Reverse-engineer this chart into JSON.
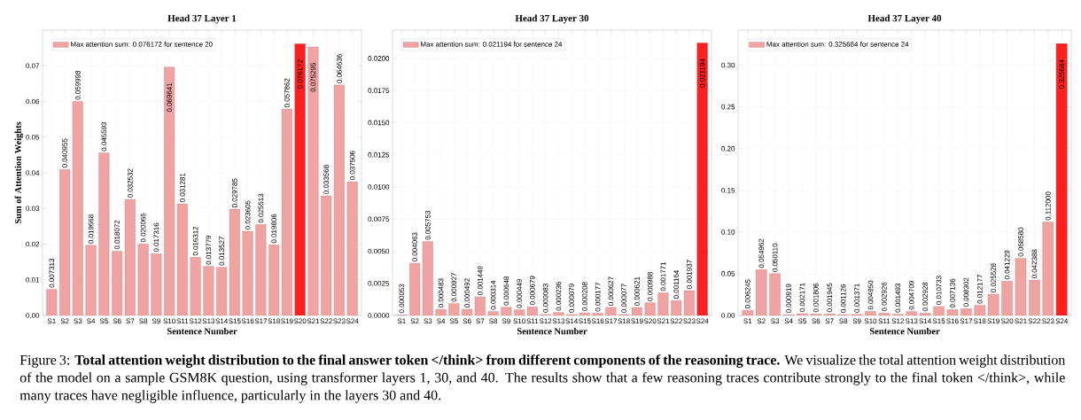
{
  "chart_data": [
    {
      "type": "bar",
      "title": "Head 37 Layer 1",
      "xlabel": "Sentence Number",
      "ylabel": "Sum of Attention Weights",
      "categories": [
        "S1",
        "S2",
        "S3",
        "S4",
        "S5",
        "S6",
        "S7",
        "S8",
        "S9",
        "S10",
        "S11",
        "S12",
        "S13",
        "S14",
        "S15",
        "S16",
        "S17",
        "S18",
        "S19",
        "S20",
        "S21",
        "S22",
        "S23",
        "S24"
      ],
      "series": [
        {
          "name": "Max attention sum: 0.076172 for sentence 20",
          "color": "#f0a3a3",
          "colors": [
            "#f0a3a3",
            "#f0a3a3",
            "#f0a3a3",
            "#f0a3a3",
            "#f0a3a3",
            "#f0a3a3",
            "#f0a3a3",
            "#f0a3a3",
            "#f0a3a3",
            "#f0a3a3",
            "#f0a3a3",
            "#f0a3a3",
            "#f0a3a3",
            "#f0a3a3",
            "#f0a3a3",
            "#f0a3a3",
            "#f0a3a3",
            "#f0a3a3",
            "#f0a3a3",
            "#ff2020",
            "#f0a3a3",
            "#f0a3a3",
            "#f0a3a3",
            "#f0a3a3"
          ],
          "values": [
            0.007313,
            0.040955,
            0.059998,
            0.019668,
            0.045593,
            0.018072,
            0.032532,
            0.020065,
            0.017316,
            0.069641,
            0.031281,
            0.016312,
            0.013779,
            0.013527,
            0.029785,
            0.023605,
            0.025513,
            0.019806,
            0.057862,
            0.076172,
            0.075295,
            0.033568,
            0.064636,
            0.037506
          ],
          "value_labels": [
            "0.007313",
            "0.040955",
            "0.059998",
            "0.019668",
            "0.045593",
            "0.018072",
            "0.032532",
            "0.020065",
            "0.017316",
            "0.069641",
            "0.031281",
            "0.016312",
            "0.013779",
            "0.013527",
            "0.029785",
            "0.023605",
            "0.025513",
            "0.019806",
            "0.057862",
            "0.076172",
            "0.075295",
            "0.033568",
            "0.064636",
            "0.037506"
          ]
        }
      ],
      "ylim": [
        0,
        0.08
      ],
      "yticks": [
        {
          "value": 0,
          "label": "0.00"
        },
        {
          "value": 0.01,
          "label": "0.01"
        },
        {
          "value": 0.02,
          "label": "0.02"
        },
        {
          "value": 0.03,
          "label": "0.03"
        },
        {
          "value": 0.04,
          "label": "0.04"
        },
        {
          "value": 0.05,
          "label": "0.05"
        },
        {
          "value": 0.06,
          "label": "0.06"
        },
        {
          "value": 0.07,
          "label": "0.07"
        }
      ],
      "grid": true,
      "legend": "top left",
      "annotations": [
        "Figure 3: **Total attention weight distribution to the final answer token </think> from different components of the reasoning trace.** We visualize the total attention weight distribution of the model on a sample GSM8K question, using transformer layers 1, 30, and 40. The results show that a few reasoning traces contribute strongly to the final token </think>, while many traces have negligible influence, particularly in the layers 30 and 40."
      ]
    },
    {
      "type": "bar",
      "title": "Head 37 Layer 30",
      "xlabel": "Sentence Number",
      "categories": [
        "S1",
        "S2",
        "S3",
        "S4",
        "S5",
        "S6",
        "S7",
        "S8",
        "S9",
        "S10",
        "S11",
        "S12",
        "S13",
        "S14",
        "S15",
        "S16",
        "S17",
        "S18",
        "S19",
        "S20",
        "S21",
        "S22",
        "S23",
        "S24"
      ],
      "series": [
        {
          "name": "Max attention sum: 0.021194 for sentence 24",
          "color": "#f0a3a3",
          "colors": [
            "#f0a3a3",
            "#f0a3a3",
            "#f0a3a3",
            "#f0a3a3",
            "#f0a3a3",
            "#f0a3a3",
            "#f0a3a3",
            "#f0a3a3",
            "#f0a3a3",
            "#f0a3a3",
            "#f0a3a3",
            "#f0a3a3",
            "#f0a3a3",
            "#f0a3a3",
            "#f0a3a3",
            "#f0a3a3",
            "#f0a3a3",
            "#f0a3a3",
            "#f0a3a3",
            "#f0a3a3",
            "#f0a3a3",
            "#f0a3a3",
            "#f0a3a3",
            "#ff2020"
          ],
          "values": [
            5.3e-05,
            0.004063,
            0.005753,
            0.000483,
            0.000927,
            0.000492,
            0.001449,
            0.000314,
            0.000648,
            0.000449,
            0.000679,
            8.3e-05,
            0.000236,
            7.9e-05,
            0.000208,
            0.000177,
            0.000627,
            7.7e-05,
            0.000621,
            0.000988,
            0.001771,
            0.001164,
            0.001937,
            0.021194
          ],
          "value_labels": [
            "0.000053",
            "0.004063",
            "0.005753",
            "0.000483",
            "0.000927",
            "0.000492",
            "0.001449",
            "0.000314",
            "0.000648",
            "0.000449",
            "0.000679",
            "0.000083",
            "0.000236",
            "0.000079",
            "0.000208",
            "0.000177",
            "0.000627",
            "0.000077",
            "0.000621",
            "0.000988",
            "0.001771",
            "0.001164",
            "0.001937",
            "0.021194"
          ]
        }
      ],
      "ylim": [
        0,
        0.0222
      ],
      "yticks": [
        {
          "value": 0,
          "label": "0.0000"
        },
        {
          "value": 0.0025,
          "label": "0.0025"
        },
        {
          "value": 0.005,
          "label": "0.0050"
        },
        {
          "value": 0.0075,
          "label": "0.0075"
        },
        {
          "value": 0.01,
          "label": "0.0100"
        },
        {
          "value": 0.0125,
          "label": "0.0125"
        },
        {
          "value": 0.015,
          "label": "0.0150"
        },
        {
          "value": 0.0175,
          "label": "0.0175"
        },
        {
          "value": 0.02,
          "label": "0.0200"
        }
      ],
      "grid": true,
      "legend": "top left"
    },
    {
      "type": "bar",
      "title": "Head 37 Layer 40",
      "xlabel": "Sentence Number",
      "categories": [
        "S1",
        "S2",
        "S3",
        "S4",
        "S5",
        "S6",
        "S7",
        "S8",
        "S9",
        "S10",
        "S11",
        "S12",
        "S13",
        "S14",
        "S15",
        "S16",
        "S17",
        "S18",
        "S19",
        "S20",
        "S21",
        "S22",
        "S23",
        "S24"
      ],
      "series": [
        {
          "name": "Max attention sum: 0.325684 for sentence 24",
          "color": "#f0a3a3",
          "colors": [
            "#f0a3a3",
            "#f0a3a3",
            "#f0a3a3",
            "#f0a3a3",
            "#f0a3a3",
            "#f0a3a3",
            "#f0a3a3",
            "#f0a3a3",
            "#f0a3a3",
            "#f0a3a3",
            "#f0a3a3",
            "#f0a3a3",
            "#f0a3a3",
            "#f0a3a3",
            "#f0a3a3",
            "#f0a3a3",
            "#f0a3a3",
            "#f0a3a3",
            "#f0a3a3",
            "#f0a3a3",
            "#f0a3a3",
            "#f0a3a3",
            "#f0a3a3",
            "#ff2020"
          ],
          "values": [
            0.006245,
            0.054962,
            0.05011,
            0.000919,
            0.002171,
            0.001806,
            0.001945,
            0.001126,
            0.001371,
            0.00495,
            0.002926,
            0.001493,
            0.004709,
            0.002928,
            0.010733,
            0.007136,
            0.008302,
            0.012177,
            0.025528,
            0.041229,
            0.06858,
            0.042388,
            0.112,
            0.325684
          ],
          "value_labels": [
            "0.006245",
            "0.054962",
            "0.050110",
            "0.000919",
            "0.002171",
            "0.001806",
            "0.001945",
            "0.001126",
            "0.001371",
            "0.004950",
            "0.002926",
            "0.001493",
            "0.004709",
            "0.002928",
            "0.010733",
            "0.007136",
            "0.008302",
            "0.012177",
            "0.025528",
            "0.041229",
            "0.068580",
            "0.042388",
            "0.112000",
            "0.325684"
          ]
        }
      ],
      "ylim": [
        0,
        0.342
      ],
      "yticks": [
        {
          "value": 0,
          "label": "0.00"
        },
        {
          "value": 0.05,
          "label": "0.05"
        },
        {
          "value": 0.1,
          "label": "0.10"
        },
        {
          "value": 0.15,
          "label": "0.15"
        },
        {
          "value": 0.2,
          "label": "0.20"
        },
        {
          "value": 0.25,
          "label": "0.25"
        },
        {
          "value": 0.3,
          "label": "0.30"
        }
      ],
      "grid": true,
      "legend": "top left"
    }
  ]
}
